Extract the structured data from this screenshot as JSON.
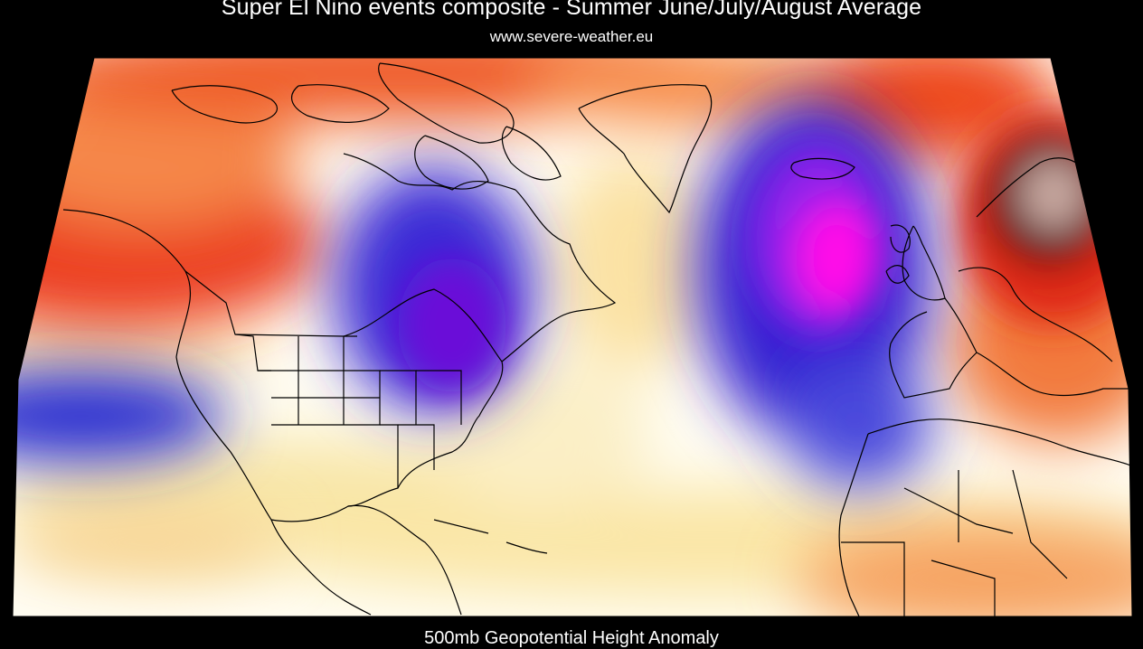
{
  "header": {
    "title": "Super El Nino events composite - Summer June/July/August Average",
    "website": "www.severe-weather.eu"
  },
  "footer": {
    "caption": "500mb Geopotential Height Anomaly"
  },
  "map": {
    "variable": "500mb Geopotential Height Anomaly",
    "season": "Summer June/July/August Average",
    "colors": {
      "strong_positive": "#6b0f0a",
      "positive": "#e8321a",
      "moderate_positive": "#f5944d",
      "weak_positive": "#fbe8ae",
      "neutral": "#ffffff",
      "weak_negative": "#5b62e0",
      "negative": "#3018c8",
      "strong_negative": "#ff10e8"
    },
    "features": [
      {
        "name": "positive-anomaly-alaska-pacific",
        "sign": "positive"
      },
      {
        "name": "positive-anomaly-arctic",
        "sign": "positive"
      },
      {
        "name": "positive-anomaly-scandinavia",
        "sign": "positive"
      },
      {
        "name": "negative-anomaly-eastern-north-america",
        "sign": "negative"
      },
      {
        "name": "negative-anomaly-north-atlantic",
        "sign": "negative"
      },
      {
        "name": "negative-anomaly-east-pacific",
        "sign": "negative"
      }
    ]
  }
}
